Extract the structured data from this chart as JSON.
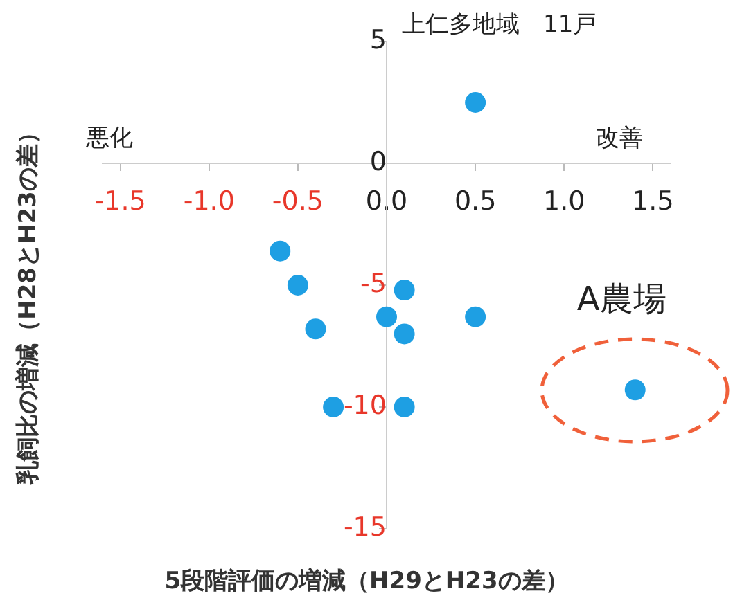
{
  "chart_data": {
    "type": "scatter",
    "title": "上仁多地域　11戸",
    "xlabel": "5段階評価の増減（H29とH23の差）",
    "ylabel": "乳飼比の増減（H28とH23の差）",
    "annotations": [
      "悪化",
      "改善",
      {
        "text": "A農場",
        "x": 1.4,
        "y": -9.3
      }
    ],
    "series": [
      {
        "color": "#1e9fe3",
        "x": [
          0.5,
          -0.6,
          -0.5,
          -0.4,
          -0.3,
          0.0,
          0.1,
          0.1,
          0.1,
          0.5,
          1.4
        ],
        "values": [
          2.5,
          -3.6,
          -5.0,
          -6.8,
          -10.0,
          -6.3,
          -5.2,
          -7.0,
          -10.0,
          -6.3,
          -9.3
        ]
      }
    ],
    "xlim": [
      -1.6,
      1.6
    ],
    "xticks": [
      {
        "value": -1.5,
        "label": "-1.5"
      },
      {
        "value": -1,
        "label": "-1.0"
      },
      {
        "value": -0.5,
        "label": "-0.5"
      },
      {
        "value": 0,
        "label": "0.0"
      },
      {
        "value": 0.5,
        "label": "0.5"
      },
      {
        "value": 1,
        "label": "1.0"
      },
      {
        "value": 1.5,
        "label": "1.5"
      }
    ],
    "ylim": [
      -15,
      5
    ],
    "yticks": [
      -15,
      -10,
      -5,
      0,
      5
    ],
    "grid": false,
    "legend": false,
    "marker": "circle"
  }
}
